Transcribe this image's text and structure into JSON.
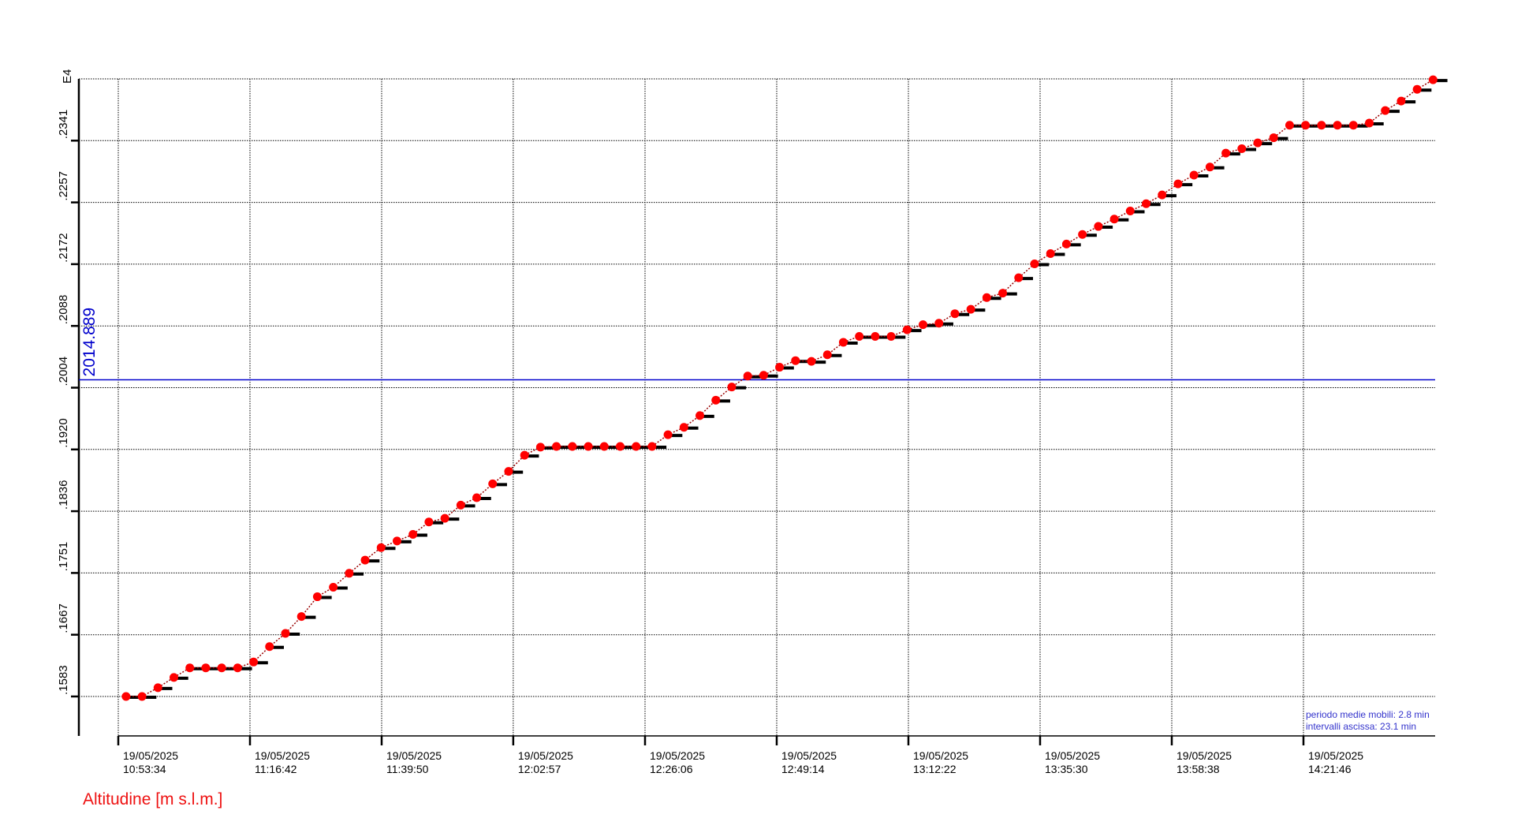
{
  "chart_data": {
    "type": "line",
    "title": "",
    "ylabel": "Altitudine [m s.l.m.]",
    "y_exponent_label": "E4",
    "ylim": [
      1583,
      2425.2
    ],
    "y_ticks": [
      "1583",
      "1667",
      "1751",
      "1836",
      "1920",
      "2004",
      "2088",
      "2172",
      "2257",
      "2341"
    ],
    "xlim": [
      "10:53:34",
      "14:44:54"
    ],
    "x_ticks": [
      {
        "date": "19/05/2025",
        "time": "10:53:34"
      },
      {
        "date": "19/05/2025",
        "time": "11:16:42"
      },
      {
        "date": "19/05/2025",
        "time": "11:39:50"
      },
      {
        "date": "19/05/2025",
        "time": "12:02:57"
      },
      {
        "date": "19/05/2025",
        "time": "12:26:06"
      },
      {
        "date": "19/05/2025",
        "time": "12:49:14"
      },
      {
        "date": "19/05/2025",
        "time": "13:12:22"
      },
      {
        "date": "19/05/2025",
        "time": "13:35:30"
      },
      {
        "date": "19/05/2025",
        "time": "13:58:38"
      },
      {
        "date": "19/05/2025",
        "time": "14:21:46"
      }
    ],
    "grid": true,
    "reference_line": {
      "value": 2014.889,
      "label": "2014.889",
      "color": "#0000cc"
    },
    "notes": [
      "periodo medie mobili: 2.8 min",
      "intervalli ascissa: 23.1 min"
    ],
    "colors": {
      "points": "#ff0000",
      "steps": "#000000",
      "line": "#990000",
      "ylabel": "#ee1111",
      "notes": "#3333cc"
    },
    "series": [
      {
        "x": [
          "10:54:56",
          "10:57:44",
          "11:00:32",
          "11:03:20",
          "11:06:08",
          "11:08:56",
          "11:11:44",
          "11:14:32",
          "11:17:20",
          "11:20:08",
          "11:22:56",
          "11:25:44",
          "11:28:32",
          "11:31:20",
          "11:34:08",
          "11:36:56",
          "11:39:44",
          "11:42:32",
          "11:45:20",
          "11:48:08",
          "11:50:56",
          "11:53:44",
          "11:56:32",
          "11:59:20",
          "12:02:08",
          "12:04:56",
          "12:07:44",
          "12:10:32",
          "12:13:20",
          "12:16:08",
          "12:18:56",
          "12:21:44",
          "12:24:32",
          "12:27:20",
          "12:30:08",
          "12:32:56",
          "12:35:44",
          "12:38:32",
          "12:41:20",
          "12:44:08",
          "12:46:56",
          "12:49:44",
          "12:52:32",
          "12:55:20",
          "12:58:08",
          "13:00:56",
          "13:03:44",
          "13:06:32",
          "13:09:20",
          "13:12:08",
          "13:14:56",
          "13:17:44",
          "13:20:32",
          "13:23:20",
          "13:26:08",
          "13:28:56",
          "13:31:44",
          "13:34:32",
          "13:37:20",
          "13:40:08",
          "13:42:56",
          "13:45:44",
          "13:48:32",
          "13:51:20",
          "13:54:08",
          "13:56:56",
          "13:59:44",
          "14:02:32",
          "14:05:20",
          "14:08:08",
          "14:10:56",
          "14:13:44",
          "14:16:32",
          "14:19:20",
          "14:22:08",
          "14:24:56",
          "14:27:44",
          "14:30:32",
          "14:33:20",
          "14:36:08",
          "14:38:56",
          "14:41:44",
          "14:44:32"
        ],
        "y": [
          1583,
          1583,
          1595,
          1609,
          1622,
          1622,
          1622,
          1622,
          1630,
          1651,
          1669,
          1692,
          1719,
          1732,
          1751,
          1769,
          1786,
          1795,
          1804,
          1821,
          1826,
          1844,
          1854,
          1873,
          1890,
          1912,
          1923,
          1924,
          1924,
          1924,
          1924,
          1924,
          1924,
          1924,
          1940,
          1950,
          1966,
          1987,
          2005,
          2020,
          2021,
          2032,
          2041,
          2040,
          2049,
          2066,
          2074,
          2074,
          2074,
          2083,
          2090,
          2092,
          2105,
          2111,
          2127,
          2133,
          2154,
          2173,
          2187,
          2200,
          2213,
          2224,
          2234,
          2245,
          2255,
          2267,
          2282,
          2294,
          2305,
          2324,
          2330,
          2338,
          2345,
          2362,
          2362,
          2362,
          2362,
          2362,
          2365,
          2382,
          2395,
          2411,
          2424
        ]
      }
    ]
  }
}
